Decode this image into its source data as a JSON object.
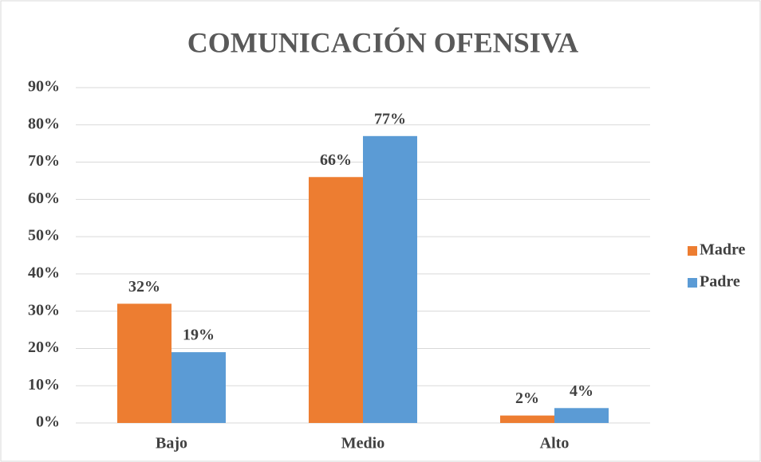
{
  "chart_data": {
    "type": "bar",
    "title": "COMUNICACIÓN OFENSIVA",
    "categories": [
      "Bajo",
      "Medio",
      "Alto"
    ],
    "series": [
      {
        "name": "Madre",
        "color": "#ed7d31",
        "values": [
          32,
          66,
          2
        ],
        "value_labels": [
          "32%",
          "66%",
          "2%"
        ]
      },
      {
        "name": "Padre",
        "color": "#5b9bd5",
        "values": [
          19,
          77,
          4
        ],
        "value_labels": [
          "19%",
          "77%",
          "4%"
        ]
      }
    ],
    "ylim": [
      0,
      90
    ],
    "yticks": [
      {
        "value": 0,
        "label": "0%"
      },
      {
        "value": 10,
        "label": "10%"
      },
      {
        "value": 20,
        "label": "20%"
      },
      {
        "value": 30,
        "label": "30%"
      },
      {
        "value": 40,
        "label": "40%"
      },
      {
        "value": 50,
        "label": "50%"
      },
      {
        "value": 60,
        "label": "60%"
      },
      {
        "value": 70,
        "label": "70%"
      },
      {
        "value": 80,
        "label": "80%"
      },
      {
        "value": 90,
        "label": "90%"
      }
    ],
    "grid": true,
    "legend": "right"
  }
}
